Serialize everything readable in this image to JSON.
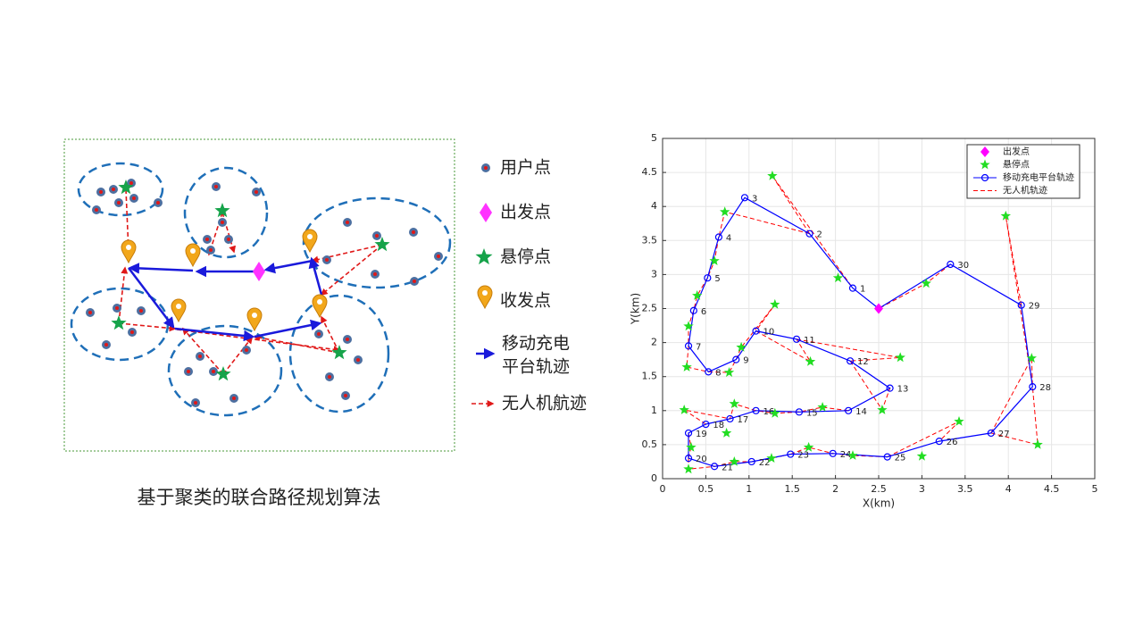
{
  "diagram": {
    "legend": {
      "user": "用户点",
      "start": "出发点",
      "hover": "悬停点",
      "station": "收发点",
      "platform": [
        "移动充电",
        "平台轨迹"
      ],
      "drone": "无人机航迹"
    },
    "caption": "基于聚类的联合路径规划算法"
  },
  "chart_data": {
    "type": "line",
    "xlabel": "X(km)",
    "ylabel": "Y(km)",
    "xlim": [
      0,
      5
    ],
    "ylim": [
      0,
      5
    ],
    "xticks": [
      0,
      0.5,
      1,
      1.5,
      2,
      2.5,
      3,
      3.5,
      4,
      4.5,
      5
    ],
    "yticks": [
      0,
      0.5,
      1,
      1.5,
      2,
      2.5,
      3,
      3.5,
      4,
      4.5,
      5
    ],
    "grid": true,
    "legend": "upper right",
    "series": [
      {
        "name": "出发点",
        "color": "#ff00ff",
        "marker": "diamond",
        "line": "none",
        "x": [
          2.5
        ],
        "values": [
          2.5
        ]
      },
      {
        "name": "悬停点",
        "color": "#22dd22",
        "marker": "star",
        "line": "none",
        "x": [
          1.27,
          0.72,
          0.6,
          0.4,
          0.3,
          0.28,
          0.77,
          0.91,
          1.3,
          1.71,
          2.75,
          2.54,
          1.85,
          1.3,
          0.83,
          0.25,
          0.74,
          0.33,
          0.3,
          0.83,
          1.26,
          1.69,
          2.2,
          3.0,
          3.43,
          4.34,
          4.27,
          3.97,
          3.05,
          2.03
        ],
        "values": [
          4.45,
          3.92,
          3.2,
          2.69,
          2.24,
          1.64,
          1.56,
          1.93,
          2.56,
          1.72,
          1.78,
          1.01,
          1.05,
          0.96,
          1.1,
          1.01,
          0.67,
          0.46,
          0.14,
          0.25,
          0.3,
          0.46,
          0.34,
          0.33,
          0.84,
          0.5,
          1.77,
          3.86,
          2.87,
          2.95
        ]
      },
      {
        "name": "移动充电平台轨迹",
        "color": "#0000ff",
        "marker": "circle",
        "line": "solid",
        "x": [
          2.5,
          2.2,
          1.7,
          0.95,
          0.65,
          0.52,
          0.36,
          0.3,
          0.53,
          0.85,
          1.08,
          1.55,
          2.17,
          2.63,
          2.15,
          1.58,
          1.08,
          0.78,
          0.5,
          0.3,
          0.3,
          0.6,
          1.03,
          1.48,
          1.97,
          2.6,
          3.2,
          3.8,
          4.28,
          4.15,
          3.33,
          2.5
        ],
        "values": [
          2.5,
          2.8,
          3.6,
          4.13,
          3.55,
          2.95,
          2.47,
          1.95,
          1.57,
          1.75,
          2.17,
          2.05,
          1.73,
          1.33,
          1.0,
          0.98,
          1.0,
          0.88,
          0.8,
          0.67,
          0.3,
          0.18,
          0.25,
          0.36,
          0.37,
          0.32,
          0.55,
          0.67,
          1.35,
          2.55,
          3.15,
          2.5
        ],
        "point_labels": [
          null,
          "1",
          "2",
          "3",
          "4",
          "5",
          "6",
          "7",
          "8",
          "9",
          "10",
          "11",
          "12",
          "13",
          "14",
          "15",
          "16",
          "17",
          "18",
          "19",
          "20",
          "21",
          "22",
          "23",
          "24",
          "25",
          "26",
          "27",
          "28",
          "29",
          "30",
          null
        ]
      },
      {
        "name": "无人机轨迹",
        "color": "#ff0000",
        "marker": "none",
        "line": "dashed",
        "x": [
          1.7,
          1.27,
          2.2,
          null,
          1.7,
          0.95,
          0.72,
          0.65,
          null,
          0.65,
          0.6,
          0.52,
          null,
          0.52,
          0.4,
          0.36,
          null,
          0.36,
          0.3,
          0.3,
          null,
          0.3,
          0.28,
          0.53,
          null,
          0.53,
          0.77,
          0.85,
          null,
          0.85,
          0.91,
          1.3,
          1.08,
          null,
          1.08,
          1.71,
          1.55,
          null,
          1.55,
          2.75,
          2.17,
          null,
          2.17,
          2.54,
          2.63,
          null,
          2.15,
          1.85,
          1.58,
          null,
          1.58,
          1.3,
          1.08,
          null,
          1.08,
          0.83,
          0.78,
          null,
          0.5,
          0.25,
          0.78,
          null,
          0.3,
          0.33,
          0.3,
          null,
          0.3,
          0.3,
          0.6,
          null,
          0.6,
          0.83,
          1.03,
          null,
          1.03,
          1.26,
          1.48,
          null,
          1.48,
          1.69,
          1.97,
          null,
          1.97,
          2.2,
          2.6,
          null,
          2.6,
          3.43,
          3.2,
          null,
          3.8,
          4.34,
          4.28,
          null,
          3.8,
          4.27,
          4.28,
          null,
          4.15,
          3.97,
          4.28,
          null,
          3.33,
          3.05,
          2.5
        ],
        "values": [
          3.6,
          4.45,
          2.8,
          null,
          3.6,
          3.85,
          3.92,
          3.55,
          null,
          3.55,
          3.2,
          2.95,
          null,
          2.95,
          2.69,
          2.47,
          null,
          2.47,
          2.24,
          1.95,
          null,
          1.95,
          1.64,
          1.57,
          null,
          1.57,
          1.56,
          1.75,
          null,
          1.75,
          1.93,
          2.56,
          2.17,
          null,
          2.17,
          1.72,
          2.05,
          null,
          2.05,
          1.78,
          1.73,
          null,
          1.73,
          1.01,
          1.33,
          null,
          1.0,
          1.05,
          0.98,
          null,
          0.98,
          0.96,
          1.0,
          null,
          1.0,
          1.1,
          0.88,
          null,
          0.8,
          1.01,
          0.88,
          null,
          0.67,
          0.46,
          0.3,
          null,
          0.3,
          0.14,
          0.18,
          null,
          0.18,
          0.25,
          0.25,
          null,
          0.25,
          0.3,
          0.36,
          null,
          0.36,
          0.46,
          0.37,
          null,
          0.37,
          0.34,
          0.32,
          null,
          0.32,
          0.84,
          0.55,
          null,
          0.67,
          0.5,
          1.35,
          null,
          0.67,
          1.77,
          1.35,
          null,
          2.55,
          3.86,
          1.35,
          null,
          3.15,
          2.87,
          2.5
        ]
      }
    ]
  }
}
